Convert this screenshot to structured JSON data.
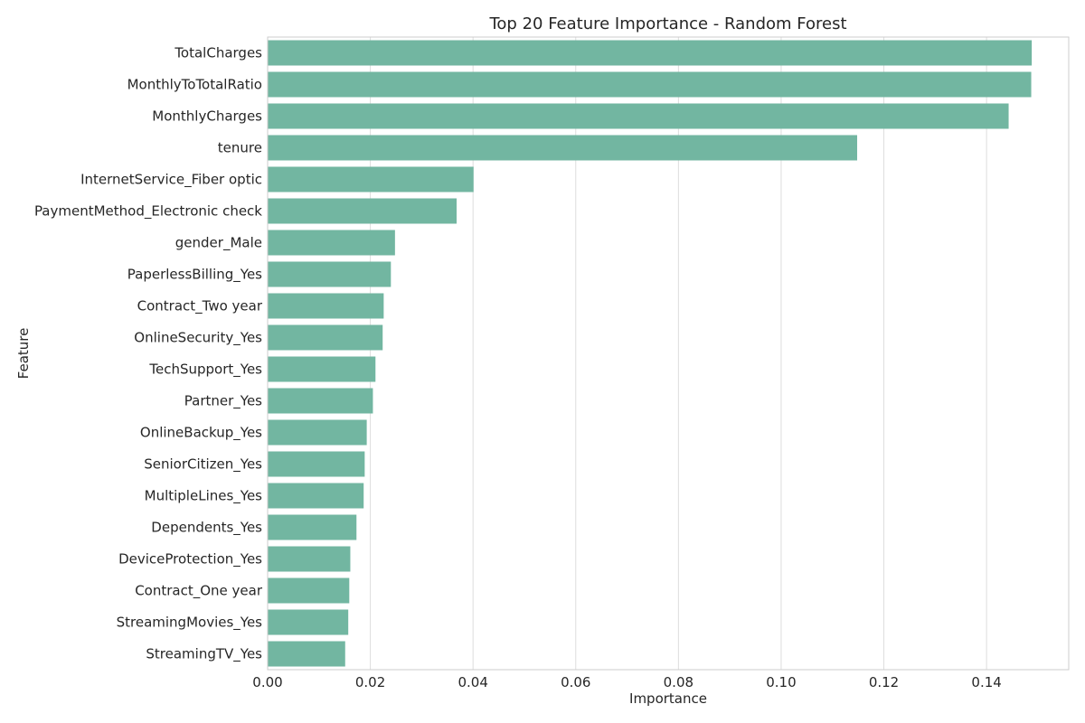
{
  "chart_data": {
    "type": "bar",
    "orientation": "horizontal",
    "title": "Top 20 Feature Importance - Random Forest",
    "xlabel": "Importance",
    "ylabel": "Feature",
    "xlim": [
      0,
      0.156
    ],
    "xticks": [
      0.0,
      0.02,
      0.04,
      0.06,
      0.08,
      0.1,
      0.12,
      0.14
    ],
    "xtick_labels": [
      "0.00",
      "0.02",
      "0.04",
      "0.06",
      "0.08",
      "0.10",
      "0.12",
      "0.14"
    ],
    "grid": "vertical",
    "bar_color": "#72b6a1",
    "categories": [
      "TotalCharges",
      "MonthlyToTotalRatio",
      "MonthlyCharges",
      "tenure",
      "InternetService_Fiber optic",
      "PaymentMethod_Electronic check",
      "gender_Male",
      "PaperlessBilling_Yes",
      "Contract_Two year",
      "OnlineSecurity_Yes",
      "TechSupport_Yes",
      "Partner_Yes",
      "OnlineBackup_Yes",
      "SeniorCitizen_Yes",
      "MultipleLines_Yes",
      "Dependents_Yes",
      "DeviceProtection_Yes",
      "Contract_One year",
      "StreamingMovies_Yes",
      "StreamingTV_Yes"
    ],
    "values": [
      0.1488,
      0.1487,
      0.1443,
      0.1148,
      0.0401,
      0.0368,
      0.0248,
      0.024,
      0.0226,
      0.0224,
      0.021,
      0.0205,
      0.0193,
      0.0189,
      0.0187,
      0.0173,
      0.0161,
      0.0159,
      0.0157,
      0.0151
    ]
  }
}
